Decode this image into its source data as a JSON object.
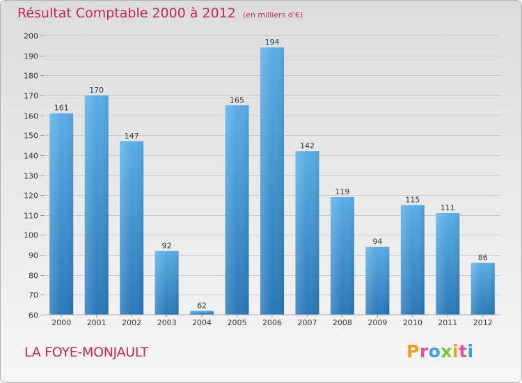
{
  "header": {
    "title": "Résultat Comptable 2000 à 2012",
    "unit": "(en milliers d'€)"
  },
  "footer": {
    "commune": "LA FOYE-MONJAULT",
    "logo": "Proxiti"
  },
  "colors": {
    "title": "#c8245a",
    "bar_top": "#5aaee6",
    "bar_bottom": "#2a78b8",
    "grid": "#c9c9c9",
    "text": "#333333"
  },
  "chart_data": {
    "type": "bar",
    "title": "Résultat Comptable 2000 à 2012",
    "xlabel": "",
    "ylabel": "",
    "categories": [
      "2000",
      "2001",
      "2002",
      "2003",
      "2004",
      "2005",
      "2006",
      "2007",
      "2008",
      "2009",
      "2010",
      "2011",
      "2012"
    ],
    "values": [
      161,
      170,
      147,
      92,
      62,
      165,
      194,
      142,
      119,
      94,
      115,
      111,
      86
    ],
    "ylim": [
      60,
      200
    ],
    "yticks": [
      60,
      70,
      80,
      90,
      100,
      110,
      120,
      130,
      140,
      150,
      160,
      170,
      180,
      190,
      200
    ],
    "grid": true
  }
}
